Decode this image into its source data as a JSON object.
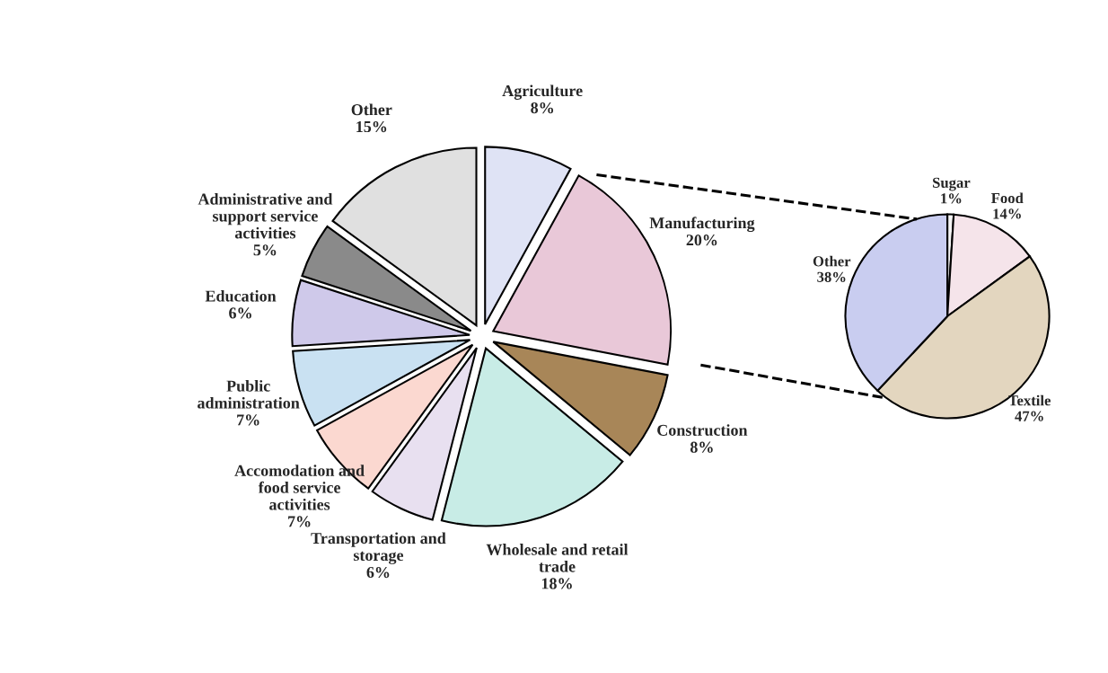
{
  "chart_data": [
    {
      "type": "pie",
      "categories": [
        "Agriculture",
        "Manufacturing",
        "Construction",
        "Wholesale and retail trade",
        "Transportation and storage",
        "Accomodation and food service activities",
        "Public administration",
        "Education",
        "Administrative and support service activities",
        "Other"
      ],
      "values": [
        8,
        20,
        8,
        18,
        6,
        7,
        7,
        6,
        5,
        15
      ],
      "value_labels": [
        "8%",
        "20%",
        "8%",
        "18%",
        "6%",
        "7%",
        "7%",
        "6%",
        "5%",
        "15%"
      ],
      "colors": [
        "#dfe3f5",
        "#e9c8d8",
        "#a88658",
        "#c8ece6",
        "#e8e0f0",
        "#fbd8d0",
        "#c9e1f2",
        "#cfc9ea",
        "#8a8a8a",
        "#e0e0e0"
      ]
    },
    {
      "type": "pie",
      "categories": [
        "Sugar",
        "Food",
        "Textile",
        "Other"
      ],
      "values": [
        1,
        14,
        47,
        38
      ],
      "value_labels": [
        "1%",
        "14%",
        "47%",
        "38%"
      ],
      "colors": [
        "#f5f5f5",
        "#f5e4ea",
        "#e3d6bf",
        "#c9cdf0"
      ]
    }
  ]
}
